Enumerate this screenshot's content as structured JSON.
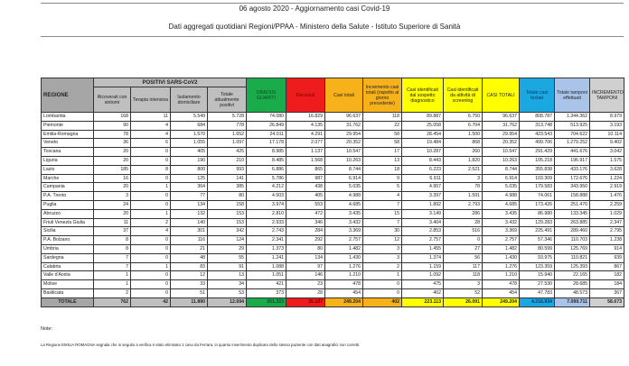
{
  "title": "06 agosto 2020 - Aggiornamento casi Covid-19",
  "subtitle": "Dati aggregati quotidiani Regioni/PPAA - Ministero della Salute - Istituto Superiore di Sanità",
  "headers": {
    "regione": "REGIONE",
    "positivi": "POSITIVI SARS-CoV2",
    "ricoverati": "Ricoverati con sintomi",
    "terapia": "Terapia intensiva",
    "isolamento": "Isolamento domiciliare",
    "totale_positivi": "Totale attualmente positivi",
    "dimessi": "DIMESSI GUARITI",
    "deceduti": "Deceduti",
    "casi_totali": "Casi totali",
    "incremento": "Incremento casi totali (rispetto al giorno precedente)",
    "sospetto": "Casi identificati dal sospetto diagnostico",
    "screening": "Casi identificati da attività di screening",
    "casi_totali2": "CASI TOTALI",
    "testati": "Totale casi testati",
    "tamponi": "Totale tamponi effettuati",
    "incr_tamponi": "INCREMENTO TAMPONI"
  },
  "rows": [
    [
      "Lombardia",
      "168",
      "11",
      "5.549",
      "5.728",
      "74.080",
      "16.829",
      "96.637",
      "118",
      "89.887",
      "6.750",
      "96.637",
      "808.787",
      "1.344.362",
      "8.979"
    ],
    [
      "Piemonte",
      "90",
      "4",
      "684",
      "778",
      "26.849",
      "4.135",
      "31.762",
      "22",
      "25.058",
      "6.704",
      "31.762",
      "313.748",
      "513.925",
      "3.193"
    ],
    [
      "Emilia-Romagna",
      "78",
      "4",
      "1.570",
      "1.652",
      "24.011",
      "4.291",
      "29.954",
      "58",
      "28.454",
      "1.500",
      "29.954",
      "423.543",
      "704.622",
      "10.114"
    ],
    [
      "Veneto",
      "36",
      "6",
      "1.055",
      "1.097",
      "17.178",
      "2.077",
      "20.352",
      "58",
      "19.484",
      "868",
      "20.352",
      "499.706",
      "1.279.252",
      "9.402"
    ],
    [
      "Toscana",
      "20",
      "0",
      "405",
      "425",
      "8.985",
      "1.137",
      "10.547",
      "17",
      "10.287",
      "260",
      "10.547",
      "291.429",
      "441.676",
      "3.042"
    ],
    [
      "Liguria",
      "20",
      "0",
      "190",
      "210",
      "8.485",
      "1.568",
      "10.263",
      "13",
      "8.443",
      "1.820",
      "10.263",
      "105.218",
      "196.917",
      "1.575"
    ],
    [
      "Lazio",
      "185",
      "8",
      "800",
      "993",
      "6.886",
      "865",
      "8.744",
      "18",
      "6.223",
      "2.521",
      "8.744",
      "355.838",
      "433.176",
      "3.628"
    ],
    [
      "Marche",
      "16",
      "0",
      "125",
      "141",
      "5.786",
      "987",
      "6.914",
      "9",
      "6.911",
      "3",
      "6.914",
      "103.309",
      "172.676",
      "1.224"
    ],
    [
      "Campania",
      "20",
      "1",
      "364",
      "385",
      "4.212",
      "438",
      "5.035",
      "5",
      "4.957",
      "78",
      "5.035",
      "179.583",
      "343.950",
      "2.919"
    ],
    [
      "P.A. Trento",
      "3",
      "0",
      "77",
      "80",
      "4.503",
      "405",
      "4.988",
      "4",
      "3.397",
      "1.591",
      "4.988",
      "74.061",
      "158.888",
      "1.476"
    ],
    [
      "Puglia",
      "24",
      "0",
      "134",
      "158",
      "3.974",
      "553",
      "4.685",
      "7",
      "1.892",
      "2.793",
      "4.685",
      "173.426",
      "251.470",
      "2.259"
    ],
    [
      "Abruzzo",
      "20",
      "1",
      "132",
      "153",
      "2.810",
      "472",
      "3.435",
      "15",
      "3.149",
      "286",
      "3.435",
      "86.980",
      "133.345",
      "1.029"
    ],
    [
      "Friuli Venezia Giulia",
      "11",
      "2",
      "140",
      "153",
      "2.933",
      "346",
      "3.432",
      "7",
      "3.404",
      "28",
      "3.432",
      "129.283",
      "263.885",
      "2.347"
    ],
    [
      "Sicilia",
      "37",
      "4",
      "301",
      "342",
      "2.743",
      "284",
      "3.369",
      "30",
      "2.853",
      "516",
      "3.369",
      "225.491",
      "289.460",
      "2.795"
    ],
    [
      "P.A. Bolzano",
      "8",
      "0",
      "116",
      "124",
      "2.341",
      "292",
      "2.757",
      "12",
      "2.757",
      "0",
      "2.757",
      "57.346",
      "110.703",
      "1.238"
    ],
    [
      "Umbria",
      "8",
      "0",
      "21",
      "29",
      "1.373",
      "80",
      "1.482",
      "3",
      "1.455",
      "27",
      "1.482",
      "80.599",
      "125.769",
      "914"
    ],
    [
      "Sardegna",
      "7",
      "0",
      "48",
      "55",
      "1.241",
      "134",
      "1.430",
      "3",
      "1.374",
      "56",
      "1.430",
      "93.975",
      "110.821",
      "939"
    ],
    [
      "Calabria",
      "7",
      "1",
      "83",
      "91",
      "1.088",
      "97",
      "1.276",
      "2",
      "1.159",
      "117",
      "1.276",
      "123.359",
      "125.393",
      "867"
    ],
    [
      "Valle d'Aosta",
      "1",
      "0",
      "12",
      "13",
      "1.051",
      "146",
      "1.210",
      "1",
      "1.092",
      "118",
      "1.210",
      "15.940",
      "22.165",
      "182"
    ],
    [
      "Molise",
      "1",
      "0",
      "33",
      "34",
      "421",
      "23",
      "478",
      "0",
      "475",
      "3",
      "478",
      "27.530",
      "28.685",
      "184"
    ],
    [
      "Basilicata",
      "2",
      "0",
      "51",
      "53",
      "373",
      "28",
      "454",
      "0",
      "402",
      "52",
      "454",
      "47.783",
      "48.573",
      "367"
    ]
  ],
  "totals": [
    "TOTALE",
    "762",
    "42",
    "11.890",
    "12.694",
    "201.323",
    "35.187",
    "249.204",
    "402",
    "223.113",
    "26.091",
    "249.204",
    "4.216.934",
    "7.099.711",
    "58.673"
  ],
  "note_label": "Note:",
  "note_text": "La Regione EMILIA ROMAGNA segnala che in seguito a verifica è stato eliminato 1 caso da Ferrara, in quanto inserimento duplicato dello stesso paziente con dati anagrafici non corretti."
}
